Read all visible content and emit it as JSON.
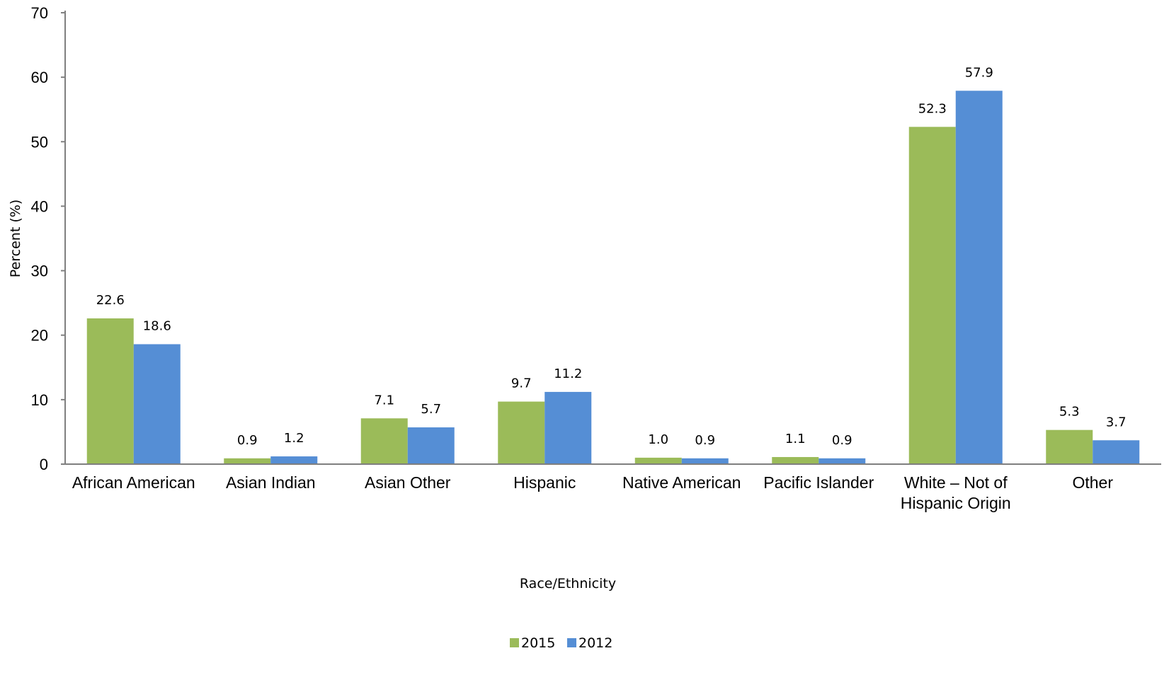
{
  "chart_data": {
    "type": "bar",
    "categories": [
      [
        "African American"
      ],
      [
        "Asian Indian"
      ],
      [
        "Asian Other"
      ],
      [
        "Hispanic"
      ],
      [
        "Native American"
      ],
      [
        "Pacific Islander"
      ],
      [
        "White – Not of",
        "Hispanic Origin"
      ],
      [
        "Other"
      ]
    ],
    "series": [
      {
        "name": "2015",
        "color": "#9bbb59",
        "values": [
          22.6,
          0.9,
          7.1,
          9.7,
          1.0,
          1.1,
          52.3,
          5.3
        ]
      },
      {
        "name": "2012",
        "color": "#558ed5",
        "values": [
          18.6,
          1.2,
          5.7,
          11.2,
          0.9,
          0.9,
          57.9,
          3.7
        ]
      }
    ],
    "data_labels": [
      [
        "22.6",
        "0.9",
        "7.1",
        "9.7",
        "1.0",
        "1.1",
        "52.3",
        "5.3"
      ],
      [
        "18.6",
        "1.2",
        "5.7",
        "11.2",
        "0.9",
        "0.9",
        "57.9",
        "3.7"
      ]
    ],
    "title": "",
    "xlabel": "Race/Ethnicity",
    "ylabel": "Percent (%)",
    "ylim": [
      0,
      70
    ],
    "yticks": [
      0,
      10,
      20,
      30,
      40,
      50,
      60,
      70
    ],
    "grid": false,
    "legend_position": "bottom"
  }
}
